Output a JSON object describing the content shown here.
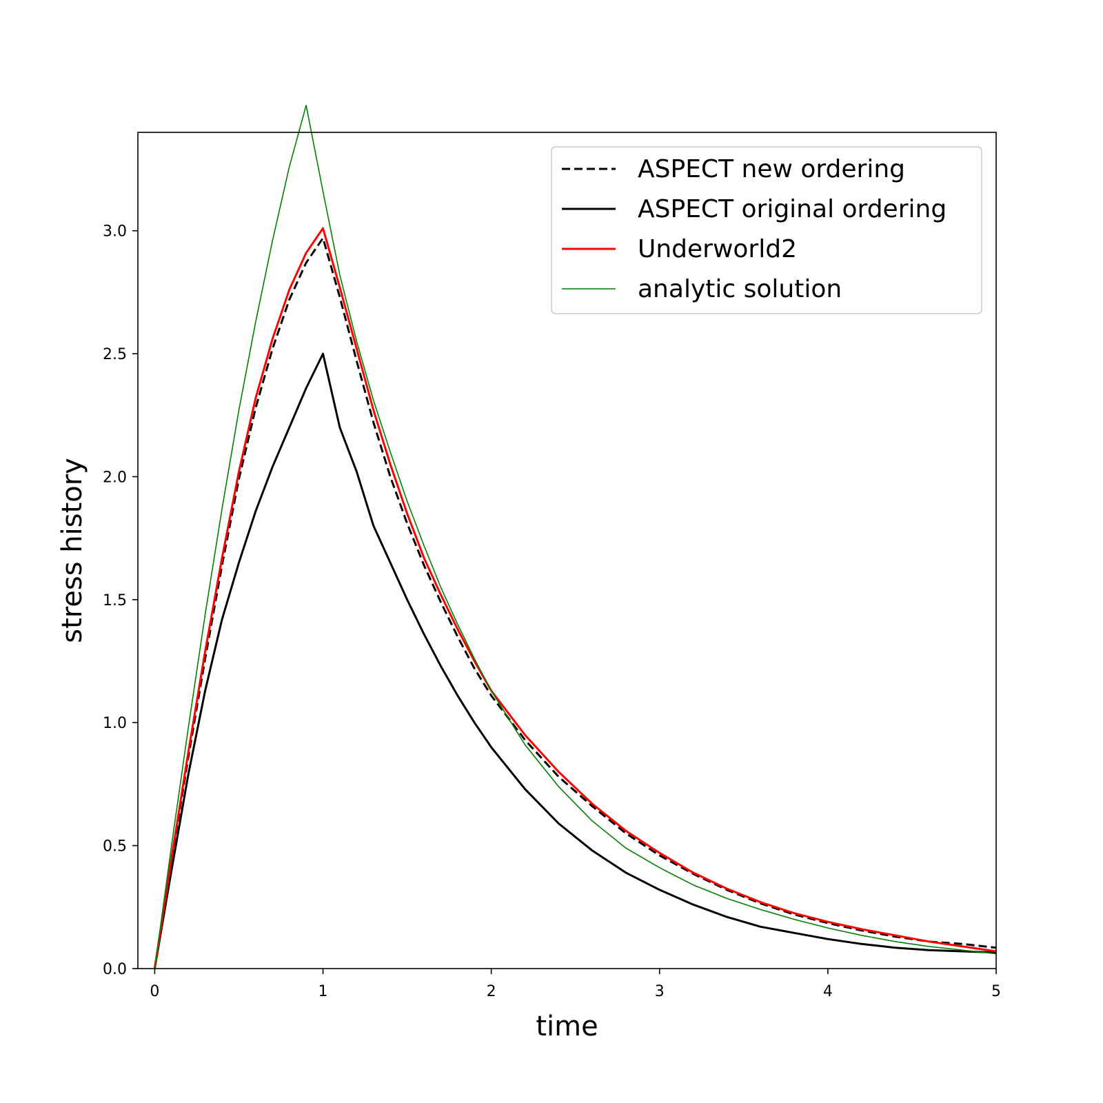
{
  "chart_data": {
    "type": "line",
    "title": "",
    "xlabel": "time",
    "ylabel": "stress history",
    "xlim": [
      -0.1,
      5.0
    ],
    "ylim": [
      0.0,
      3.4
    ],
    "xticks": [
      0,
      1,
      2,
      3,
      4,
      5
    ],
    "xtick_labels": [
      "0",
      "1",
      "2",
      "3",
      "4",
      "5"
    ],
    "yticks": [
      0.0,
      0.5,
      1.0,
      1.5,
      2.0,
      2.5,
      3.0
    ],
    "ytick_labels": [
      "0.0",
      "0.5",
      "1.0",
      "1.5",
      "2.0",
      "2.5",
      "3.0"
    ],
    "grid": false,
    "legend_position": "upper right",
    "series": [
      {
        "name": "ASPECT new ordering",
        "color": "#000000",
        "style": "dashed",
        "x": [
          0,
          0.1,
          0.2,
          0.3,
          0.4,
          0.5,
          0.6,
          0.7,
          0.8,
          0.9,
          1.0,
          1.1,
          1.2,
          1.3,
          1.4,
          1.5,
          1.6,
          1.7,
          1.8,
          1.9,
          2.0,
          2.2,
          2.4,
          2.6,
          2.8,
          3.0,
          3.2,
          3.4,
          3.6,
          3.8,
          4.0,
          4.2,
          4.4,
          4.6,
          4.8,
          5.0
        ],
        "y": [
          0,
          0.44,
          0.86,
          1.26,
          1.64,
          1.99,
          2.28,
          2.52,
          2.72,
          2.87,
          2.97,
          2.73,
          2.47,
          2.22,
          2.0,
          1.81,
          1.64,
          1.49,
          1.35,
          1.22,
          1.11,
          0.93,
          0.78,
          0.66,
          0.55,
          0.46,
          0.385,
          0.32,
          0.265,
          0.22,
          0.185,
          0.155,
          0.13,
          0.11,
          0.1,
          0.085
        ]
      },
      {
        "name": "ASPECT original ordering",
        "color": "#000000",
        "style": "solid",
        "x": [
          0,
          0.1,
          0.2,
          0.3,
          0.4,
          0.5,
          0.6,
          0.7,
          0.8,
          0.9,
          1.0,
          1.1,
          1.2,
          1.3,
          1.4,
          1.5,
          1.6,
          1.7,
          1.8,
          1.9,
          2.0,
          2.2,
          2.4,
          2.6,
          2.8,
          3.0,
          3.2,
          3.4,
          3.6,
          3.8,
          4.0,
          4.2,
          4.4,
          4.6,
          4.8,
          5.0
        ],
        "y": [
          0,
          0.4,
          0.79,
          1.13,
          1.42,
          1.65,
          1.86,
          2.04,
          2.2,
          2.36,
          2.5,
          2.2,
          2.02,
          1.8,
          1.65,
          1.5,
          1.36,
          1.23,
          1.11,
          1.0,
          0.9,
          0.73,
          0.59,
          0.48,
          0.39,
          0.32,
          0.26,
          0.21,
          0.17,
          0.145,
          0.12,
          0.1,
          0.085,
          0.075,
          0.07,
          0.065
        ]
      },
      {
        "name": "Underworld2",
        "color": "#ff0000",
        "style": "solid",
        "x": [
          0,
          0.1,
          0.2,
          0.3,
          0.4,
          0.5,
          0.6,
          0.7,
          0.8,
          0.9,
          1.0,
          1.1,
          1.2,
          1.3,
          1.4,
          1.5,
          1.6,
          1.7,
          1.8,
          1.9,
          2.0,
          2.2,
          2.4,
          2.6,
          2.8,
          3.0,
          3.2,
          3.4,
          3.6,
          3.8,
          4.0,
          4.2,
          4.4,
          4.6,
          4.8,
          5.0
        ],
        "y": [
          0,
          0.45,
          0.88,
          1.29,
          1.67,
          2.02,
          2.32,
          2.56,
          2.76,
          2.91,
          3.01,
          2.77,
          2.52,
          2.27,
          2.05,
          1.85,
          1.67,
          1.52,
          1.38,
          1.25,
          1.13,
          0.95,
          0.8,
          0.67,
          0.56,
          0.47,
          0.39,
          0.325,
          0.27,
          0.225,
          0.19,
          0.16,
          0.135,
          0.11,
          0.09,
          0.07
        ]
      },
      {
        "name": "analytic solution",
        "color": "#008000",
        "style": "solid-thin",
        "x": [
          0,
          0.1,
          0.2,
          0.3,
          0.4,
          0.5,
          0.6,
          0.7,
          0.8,
          0.9,
          1.0,
          1.1,
          1.2,
          1.3,
          1.4,
          1.5,
          1.6,
          1.7,
          1.8,
          1.9,
          2.0,
          2.2,
          2.4,
          2.6,
          2.8,
          3.0,
          3.2,
          3.4,
          3.6,
          3.8,
          4.0,
          4.2,
          4.4,
          4.6,
          4.8,
          5.0
        ],
        "y": [
          0,
          0.5,
          0.98,
          1.44,
          1.87,
          2.27,
          2.63,
          2.96,
          3.26,
          3.51,
          3.16,
          2.82,
          2.55,
          2.31,
          2.1,
          1.9,
          1.72,
          1.55,
          1.4,
          1.26,
          1.13,
          0.91,
          0.74,
          0.6,
          0.49,
          0.41,
          0.34,
          0.285,
          0.24,
          0.2,
          0.165,
          0.135,
          0.11,
          0.09,
          0.075,
          0.06
        ]
      }
    ]
  }
}
